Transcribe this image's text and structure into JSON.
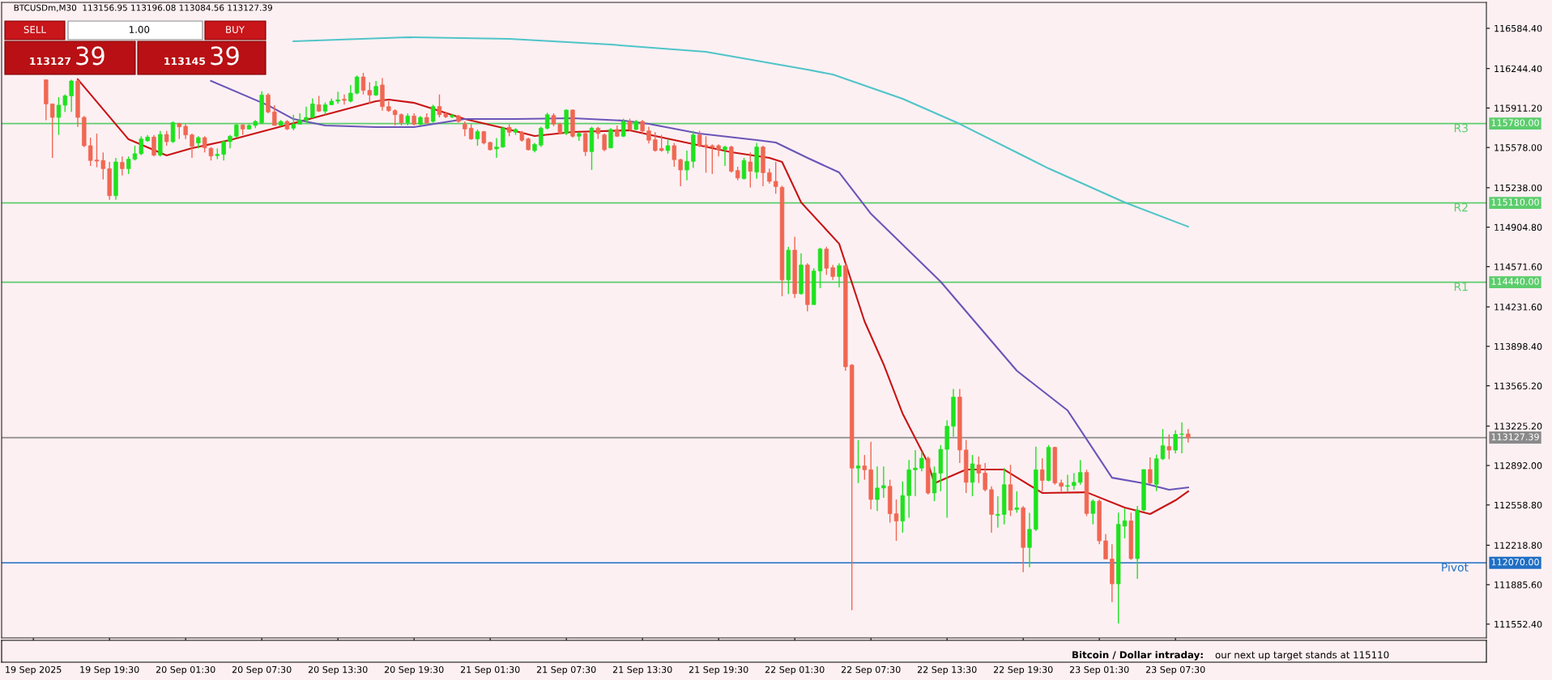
{
  "chart_data": {
    "type": "candlestick",
    "title": "BTCUSDm,M30  113156.95 113196.08 113084.56 113127.39",
    "x": [
      "2025-09-19T14:30",
      "2025-09-19T15:00",
      "2025-09-19T15:30",
      "2025-09-19T16:00",
      "2025-09-19T16:30",
      "2025-09-19T17:00",
      "2025-09-19T17:30",
      "2025-09-19T18:00",
      "2025-09-19T18:30",
      "2025-09-19T19:00",
      "2025-09-19T19:30",
      "2025-09-19T20:00",
      "2025-09-19T20:30",
      "2025-09-19T21:00",
      "2025-09-19T21:30",
      "2025-09-19T22:00",
      "2025-09-19T22:30",
      "2025-09-19T23:00",
      "2025-09-19T23:30",
      "2025-09-20T00:00",
      "2025-09-20T00:30",
      "2025-09-20T01:00",
      "2025-09-20T01:30",
      "2025-09-20T02:00",
      "2025-09-20T02:30",
      "2025-09-20T03:00",
      "2025-09-20T03:30",
      "2025-09-20T04:00",
      "2025-09-20T04:30",
      "2025-09-20T05:00",
      "2025-09-20T05:30",
      "2025-09-20T06:00",
      "2025-09-20T06:30",
      "2025-09-20T07:00",
      "2025-09-20T07:30",
      "2025-09-20T08:00",
      "2025-09-20T08:30",
      "2025-09-20T09:00",
      "2025-09-20T09:30",
      "2025-09-20T10:00",
      "2025-09-20T10:30",
      "2025-09-20T11:00",
      "2025-09-20T11:30",
      "2025-09-20T12:00",
      "2025-09-20T12:30",
      "2025-09-20T13:00",
      "2025-09-20T13:30",
      "2025-09-20T14:00",
      "2025-09-20T14:30",
      "2025-09-20T15:00",
      "2025-09-20T15:30",
      "2025-09-20T16:00",
      "2025-09-20T16:30",
      "2025-09-20T17:00",
      "2025-09-20T17:30",
      "2025-09-20T18:00",
      "2025-09-20T18:30",
      "2025-09-20T19:00",
      "2025-09-20T19:30",
      "2025-09-20T20:00",
      "2025-09-20T20:30",
      "2025-09-20T21:00",
      "2025-09-20T21:30",
      "2025-09-20T22:00",
      "2025-09-20T22:30",
      "2025-09-20T23:00",
      "2025-09-20T23:30",
      "2025-09-21T00:00",
      "2025-09-21T00:30",
      "2025-09-21T01:00",
      "2025-09-21T01:30",
      "2025-09-21T02:00",
      "2025-09-21T02:30",
      "2025-09-21T03:00",
      "2025-09-21T03:30",
      "2025-09-21T04:00",
      "2025-09-21T04:30",
      "2025-09-21T05:00",
      "2025-09-21T05:30",
      "2025-09-21T06:00",
      "2025-09-21T06:30",
      "2025-09-21T07:00",
      "2025-09-21T07:30",
      "2025-09-21T08:00",
      "2025-09-21T08:30",
      "2025-09-21T09:00",
      "2025-09-21T09:30",
      "2025-09-21T10:00",
      "2025-09-21T10:30",
      "2025-09-21T11:00",
      "2025-09-21T11:30",
      "2025-09-21T12:00",
      "2025-09-21T12:30",
      "2025-09-21T13:00",
      "2025-09-21T13:30",
      "2025-09-21T14:00",
      "2025-09-21T14:30",
      "2025-09-21T15:00",
      "2025-09-21T15:30",
      "2025-09-21T16:00",
      "2025-09-21T16:30",
      "2025-09-21T17:00",
      "2025-09-21T17:30",
      "2025-09-21T18:00",
      "2025-09-21T18:30",
      "2025-09-21T19:00",
      "2025-09-21T19:30",
      "2025-09-21T20:00",
      "2025-09-21T20:30",
      "2025-09-21T21:00",
      "2025-09-21T21:30",
      "2025-09-21T22:00",
      "2025-09-21T22:30",
      "2025-09-21T23:00",
      "2025-09-21T23:30",
      "2025-09-22T00:00",
      "2025-09-22T00:30",
      "2025-09-22T01:00",
      "2025-09-22T01:30",
      "2025-09-22T02:00",
      "2025-09-22T02:30",
      "2025-09-22T03:00",
      "2025-09-22T03:30",
      "2025-09-22T04:00",
      "2025-09-22T04:30",
      "2025-09-22T05:00",
      "2025-09-22T05:30",
      "2025-09-22T06:00",
      "2025-09-22T06:30",
      "2025-09-22T07:00",
      "2025-09-22T07:30",
      "2025-09-22T08:00",
      "2025-09-22T08:30",
      "2025-09-22T09:00",
      "2025-09-22T09:30",
      "2025-09-22T10:00",
      "2025-09-22T10:30",
      "2025-09-22T11:00",
      "2025-09-22T11:30",
      "2025-09-22T12:00",
      "2025-09-22T12:30",
      "2025-09-22T13:00",
      "2025-09-22T13:30",
      "2025-09-22T14:00",
      "2025-09-22T14:30",
      "2025-09-22T15:00",
      "2025-09-22T15:30",
      "2025-09-22T16:00",
      "2025-09-22T16:30",
      "2025-09-22T17:00",
      "2025-09-22T17:30",
      "2025-09-22T18:00",
      "2025-09-22T18:30",
      "2025-09-22T19:00",
      "2025-09-22T19:30",
      "2025-09-22T20:00",
      "2025-09-22T20:30",
      "2025-09-22T21:00",
      "2025-09-22T21:30",
      "2025-09-22T22:00",
      "2025-09-22T22:30",
      "2025-09-22T23:00",
      "2025-09-22T23:30",
      "2025-09-23T00:00",
      "2025-09-23T00:30",
      "2025-09-23T01:00",
      "2025-09-23T01:30",
      "2025-09-23T02:00",
      "2025-09-23T02:30",
      "2025-09-23T03:00",
      "2025-09-23T03:30",
      "2025-09-23T04:00",
      "2025-09-23T04:30",
      "2025-09-23T05:00",
      "2025-09-23T05:30",
      "2025-09-23T06:00",
      "2025-09-23T06:30",
      "2025-09-23T07:00",
      "2025-09-23T07:30",
      "2025-09-23T08:00",
      "2025-09-23T08:30"
    ],
    "ohlc": [
      [
        116150,
        116150,
        115809,
        115946
      ],
      [
        115946,
        115946,
        115490,
        115832
      ],
      [
        115832,
        116003,
        115684,
        115935
      ],
      [
        115935,
        116026,
        115878,
        116014
      ],
      [
        116014,
        116150,
        115878,
        116140
      ],
      [
        116140,
        116150,
        115752,
        115832
      ],
      [
        115832,
        115844,
        115581,
        115593
      ],
      [
        115593,
        115661,
        115422,
        115468
      ],
      [
        115472,
        115695,
        115411,
        115463
      ],
      [
        115468,
        115536,
        115308,
        115399
      ],
      [
        115399,
        115456,
        115137,
        115171
      ],
      [
        115171,
        115490,
        115137,
        115456
      ],
      [
        115452,
        115502,
        115342,
        115399
      ],
      [
        115399,
        115502,
        115354,
        115479
      ],
      [
        115479,
        115593,
        115468,
        115525
      ],
      [
        115525,
        115673,
        115513,
        115650
      ],
      [
        115634,
        115684,
        115627,
        115666
      ],
      [
        115666,
        115684,
        115502,
        115513
      ],
      [
        115513,
        115718,
        115502,
        115688
      ],
      [
        115688,
        115718,
        115593,
        115627
      ],
      [
        115627,
        115798,
        115616,
        115787
      ],
      [
        115780,
        115787,
        115650,
        115752
      ],
      [
        115757,
        115775,
        115650,
        115684
      ],
      [
        115684,
        115695,
        115490,
        115588
      ],
      [
        115616,
        115673,
        115570,
        115661
      ],
      [
        115661,
        115673,
        115536,
        115575
      ],
      [
        115570,
        115581,
        115468,
        115506
      ],
      [
        115509,
        115570,
        115479,
        115520
      ],
      [
        115520,
        115638,
        115468,
        115627
      ],
      [
        115627,
        115684,
        115570,
        115673
      ],
      [
        115673,
        115775,
        115661,
        115768
      ],
      [
        115768,
        115775,
        115684,
        115734
      ],
      [
        115734,
        115775,
        115729,
        115764
      ],
      [
        115764,
        115809,
        115741,
        115798
      ],
      [
        115787,
        116053,
        115775,
        116021
      ],
      [
        116021,
        116037,
        115866,
        115878
      ],
      [
        115878,
        115935,
        115764,
        115764
      ],
      [
        115764,
        115809,
        115764,
        115798
      ],
      [
        115798,
        115809,
        115725,
        115734
      ],
      [
        115741,
        115855,
        115723,
        115775
      ],
      [
        115775,
        115866,
        115775,
        115809
      ],
      [
        115809,
        115923,
        115787,
        115832
      ],
      [
        115832,
        115992,
        115825,
        115946
      ],
      [
        115939,
        116014,
        115878,
        115885
      ],
      [
        115885,
        115958,
        115855,
        115939
      ],
      [
        115939,
        115992,
        115935,
        115969
      ],
      [
        115969,
        116049,
        115946,
        115980
      ],
      [
        115985,
        116026,
        115939,
        115976
      ],
      [
        115969,
        116106,
        115958,
        116037
      ],
      [
        116037,
        116185,
        116026,
        116174
      ],
      [
        116174,
        116208,
        116026,
        116060
      ],
      [
        116060,
        116129,
        115946,
        116021
      ],
      [
        116021,
        116140,
        116014,
        116094
      ],
      [
        116106,
        116163,
        115889,
        115923
      ],
      [
        115923,
        115969,
        115878,
        115889
      ],
      [
        115889,
        115901,
        115764,
        115855
      ],
      [
        115855,
        115866,
        115764,
        115787
      ],
      [
        115787,
        115866,
        115764,
        115844
      ],
      [
        115844,
        115867,
        115764,
        115775
      ],
      [
        115775,
        115844,
        115764,
        115832
      ],
      [
        115832,
        115867,
        115775,
        115787
      ],
      [
        115798,
        115939,
        115787,
        115924
      ],
      [
        115924,
        116026,
        115832,
        115855
      ],
      [
        115862,
        115878,
        115826,
        115837
      ],
      [
        115837,
        115862,
        115826,
        115848
      ],
      [
        115844,
        115855,
        115787,
        115798
      ],
      [
        115775,
        115798,
        115673,
        115734
      ],
      [
        115741,
        115775,
        115643,
        115650
      ],
      [
        115650,
        115730,
        115593,
        115712
      ],
      [
        115712,
        115718,
        115604,
        115616
      ],
      [
        115620,
        115627,
        115552,
        115559
      ],
      [
        115566,
        115657,
        115490,
        115582
      ],
      [
        115582,
        115753,
        115575,
        115741
      ],
      [
        115748,
        115775,
        115673,
        115707
      ],
      [
        115707,
        115741,
        115684,
        115730
      ],
      [
        115707,
        115718,
        115627,
        115639
      ],
      [
        115650,
        115661,
        115552,
        115559
      ],
      [
        115552,
        115616,
        115536,
        115604
      ],
      [
        115598,
        115753,
        115582,
        115741
      ],
      [
        115741,
        115871,
        115730,
        115855
      ],
      [
        115848,
        115867,
        115757,
        115775
      ],
      [
        115775,
        115787,
        115696,
        115696
      ],
      [
        115696,
        115901,
        115684,
        115894
      ],
      [
        115894,
        115901,
        115661,
        115673
      ],
      [
        115673,
        115707,
        115634,
        115696
      ],
      [
        115696,
        115707,
        115506,
        115543
      ],
      [
        115543,
        115753,
        115388,
        115741
      ],
      [
        115741,
        115753,
        115650,
        115696
      ],
      [
        115684,
        115696,
        115547,
        115559
      ],
      [
        115575,
        115741,
        115570,
        115730
      ],
      [
        115730,
        115764,
        115666,
        115673
      ],
      [
        115673,
        115821,
        115666,
        115798
      ],
      [
        115798,
        115821,
        115718,
        115730
      ],
      [
        115730,
        115810,
        115725,
        115798
      ],
      [
        115798,
        115810,
        115696,
        115718
      ],
      [
        115718,
        115753,
        115611,
        115639
      ],
      [
        115643,
        115707,
        115543,
        115552
      ],
      [
        115570,
        115684,
        115543,
        115552
      ],
      [
        115552,
        115650,
        115525,
        115593
      ],
      [
        115593,
        115616,
        115415,
        115475
      ],
      [
        115475,
        115484,
        115251,
        115388
      ],
      [
        115388,
        115552,
        115301,
        115461
      ],
      [
        115461,
        115718,
        115406,
        115684
      ],
      [
        115684,
        115718,
        115582,
        115593
      ],
      [
        115598,
        115673,
        115365,
        115582
      ],
      [
        115593,
        115604,
        115354,
        115582
      ],
      [
        115593,
        115604,
        115502,
        115559
      ],
      [
        115559,
        115593,
        115422,
        115582
      ],
      [
        115582,
        115593,
        115365,
        115377
      ],
      [
        115383,
        115415,
        115301,
        115320
      ],
      [
        115315,
        115490,
        115308,
        115468
      ],
      [
        115456,
        115536,
        115240,
        115377
      ],
      [
        115370,
        115616,
        115315,
        115582
      ],
      [
        115582,
        115593,
        115251,
        115365
      ],
      [
        115365,
        115399,
        115274,
        115292
      ],
      [
        115292,
        115456,
        115187,
        115247
      ],
      [
        115241,
        115255,
        114321,
        114460
      ],
      [
        114460,
        114739,
        114340,
        114711
      ],
      [
        114711,
        114823,
        114307,
        114343
      ],
      [
        114343,
        114683,
        114335,
        114586
      ],
      [
        114586,
        114600,
        114195,
        114251
      ],
      [
        114251,
        114558,
        114251,
        114535
      ],
      [
        114535,
        114731,
        114390,
        114720
      ],
      [
        114720,
        114739,
        114502,
        114558
      ],
      [
        114563,
        114586,
        114460,
        114488
      ],
      [
        114488,
        114600,
        114396,
        114580
      ],
      [
        114580,
        114600,
        113693,
        113726
      ],
      [
        113740,
        113748,
        111670,
        112870
      ],
      [
        112870,
        113107,
        112744,
        112889
      ],
      [
        112889,
        112981,
        112772,
        112856
      ],
      [
        112856,
        113093,
        112521,
        112605
      ],
      [
        112605,
        112884,
        112507,
        112702
      ],
      [
        112702,
        112884,
        112618,
        112722
      ],
      [
        112716,
        112772,
        112409,
        112485
      ],
      [
        112485,
        112605,
        112256,
        112423
      ],
      [
        112423,
        112758,
        112325,
        112638
      ],
      [
        112638,
        112939,
        112451,
        112856
      ],
      [
        112856,
        113023,
        112632,
        112870
      ],
      [
        112870,
        113009,
        112842,
        112953
      ],
      [
        112953,
        112967,
        112646,
        112660
      ],
      [
        112660,
        112884,
        112591,
        112828
      ],
      [
        112828,
        113065,
        112674,
        113029
      ],
      [
        113029,
        113274,
        112451,
        113224
      ],
      [
        113224,
        113539,
        113135,
        113470
      ],
      [
        113470,
        113539,
        112912,
        113023
      ],
      [
        113023,
        113107,
        112660,
        112750
      ],
      [
        112750,
        112981,
        112632,
        112906
      ],
      [
        112898,
        112967,
        112744,
        112828
      ],
      [
        112828,
        112912,
        112674,
        112688
      ],
      [
        112688,
        112716,
        112325,
        112479
      ],
      [
        112471,
        112632,
        112367,
        112479
      ],
      [
        112479,
        112870,
        112395,
        112730
      ],
      [
        112730,
        112898,
        112465,
        112515
      ],
      [
        112521,
        112674,
        112493,
        112535
      ],
      [
        112535,
        112549,
        111991,
        112200
      ],
      [
        112200,
        112493,
        112032,
        112353
      ],
      [
        112353,
        113051,
        112339,
        112856
      ],
      [
        112856,
        112953,
        112674,
        112766
      ],
      [
        112766,
        113065,
        112758,
        113045
      ],
      [
        113045,
        113051,
        112730,
        112744
      ],
      [
        112744,
        112772,
        112674,
        112716
      ],
      [
        112716,
        112814,
        112674,
        112722
      ],
      [
        112722,
        112828,
        112688,
        112750
      ],
      [
        112750,
        112939,
        112730,
        112833
      ],
      [
        112833,
        112856,
        112465,
        112487
      ],
      [
        112487,
        112605,
        112395,
        112591
      ],
      [
        112591,
        112605,
        112228,
        112256
      ],
      [
        112256,
        112312,
        112102,
        112102
      ],
      [
        112102,
        112228,
        111739,
        111893
      ],
      [
        111893,
        112494,
        111558,
        112395
      ],
      [
        112380,
        112528,
        112277,
        112425
      ],
      [
        112425,
        112494,
        112095,
        112106
      ],
      [
        112106,
        112551,
        111935,
        112516
      ],
      [
        112516,
        112858,
        112505,
        112858
      ],
      [
        112858,
        112961,
        112733,
        112744
      ],
      [
        112733,
        112984,
        112676,
        112949
      ],
      [
        112949,
        113200,
        112938,
        113059
      ],
      [
        113052,
        113155,
        112945,
        113022
      ],
      [
        113022,
        113189,
        112995,
        113155
      ],
      [
        113155,
        113257,
        112995,
        113159
      ],
      [
        113159,
        113200,
        113086,
        113127.39
      ]
    ],
    "colors": [
      "#f06752",
      "#f06752",
      "#1ee21e",
      "#1ee21e",
      "#1ee21e",
      "#f06752",
      "#f06752",
      "#f06752",
      "#f06752",
      "#f06752",
      "#f06752",
      "#1ee21e",
      "#f06752",
      "#1ee21e",
      "#1ee21e",
      "#1ee21e",
      "#1ee21e",
      "#f06752",
      "#1ee21e",
      "#f06752",
      "#1ee21e",
      "#f06752",
      "#f06752",
      "#f06752",
      "#1ee21e",
      "#f06752",
      "#f06752",
      "#1ee21e",
      "#1ee21e",
      "#1ee21e",
      "#1ee21e",
      "#f06752",
      "#1ee21e",
      "#1ee21e",
      "#1ee21e",
      "#f06752",
      "#f06752",
      "#1ee21e",
      "#f06752",
      "#1ee21e",
      "#1ee21e",
      "#1ee21e",
      "#1ee21e",
      "#f06752",
      "#1ee21e",
      "#1ee21e",
      "#1ee21e",
      "#f06752",
      "#1ee21e",
      "#1ee21e",
      "#f06752",
      "#f06752",
      "#1ee21e",
      "#f06752",
      "#f06752",
      "#f06752",
      "#f06752",
      "#1ee21e",
      "#f06752",
      "#1ee21e",
      "#f06752",
      "#1ee21e",
      "#f06752",
      "#f06752",
      "#1ee21e",
      "#f06752",
      "#f06752",
      "#f06752",
      "#1ee21e",
      "#f06752",
      "#f06752",
      "#1ee21e",
      "#1ee21e",
      "#f06752",
      "#1ee21e",
      "#f06752",
      "#f06752",
      "#1ee21e",
      "#1ee21e",
      "#1ee21e",
      "#f06752",
      "#f06752",
      "#1ee21e",
      "#f06752",
      "#1ee21e",
      "#f06752",
      "#1ee21e",
      "#f06752",
      "#f06752",
      "#1ee21e",
      "#f06752",
      "#1ee21e",
      "#f06752",
      "#1ee21e",
      "#f06752",
      "#f06752",
      "#f06752",
      "#f06752",
      "#1ee21e",
      "#f06752",
      "#f06752",
      "#1ee21e",
      "#1ee21e",
      "#f06752",
      "#f06752",
      "#f06752",
      "#f06752",
      "#1ee21e",
      "#f06752",
      "#f06752",
      "#1ee21e",
      "#f06752",
      "#1ee21e",
      "#f06752",
      "#f06752",
      "#f06752",
      "#f06752",
      "#1ee21e",
      "#f06752",
      "#1ee21e",
      "#f06752",
      "#1ee21e",
      "#1ee21e",
      "#f06752",
      "#f06752",
      "#1ee21e",
      "#f06752",
      "#f06752",
      "#1ee21e",
      "#f06752",
      "#f06752",
      "#1ee21e",
      "#1ee21e",
      "#f06752",
      "#f06752",
      "#1ee21e",
      "#1ee21e",
      "#1ee21e",
      "#1ee21e",
      "#f06752",
      "#1ee21e",
      "#1ee21e",
      "#1ee21e",
      "#1ee21e",
      "#f06752",
      "#f06752",
      "#1ee21e",
      "#f06752",
      "#f06752",
      "#f06752",
      "#1ee21e",
      "#1ee21e",
      "#f06752",
      "#1ee21e",
      "#f06752",
      "#1ee21e",
      "#1ee21e",
      "#f06752",
      "#1ee21e",
      "#f06752",
      "#f06752",
      "#1ee21e",
      "#1ee21e",
      "#1ee21e",
      "#f06752",
      "#1ee21e",
      "#f06752",
      "#f06752",
      "#f06752",
      "#1ee21e",
      "#1ee21e",
      "#f06752",
      "#1ee21e",
      "#1ee21e",
      "#f06752",
      "#1ee21e",
      "#1ee21e",
      "#f06752",
      "#1ee21e",
      "#1ee21e",
      "#f06752"
    ],
    "series": [
      {
        "type": "line",
        "color": "#c81414",
        "x": [
          "2025-09-19T17:00",
          "2025-09-19T21:00",
          "2025-09-20T00:00",
          "2025-09-20T02:00",
          "2025-09-20T05:00",
          "2025-09-20T11:00",
          "2025-09-20T16:30",
          "2025-09-20T17:30",
          "2025-09-20T19:30",
          "2025-09-20T23:30",
          "2025-09-21T02:30",
          "2025-09-21T05:00",
          "2025-09-21T08:00",
          "2025-09-21T12:30",
          "2025-09-21T14:30",
          "2025-09-21T20:30",
          "2025-09-21T23:30",
          "2025-09-22T00:30",
          "2025-09-22T02:00",
          "2025-09-22T05:00",
          "2025-09-22T07:00",
          "2025-09-22T08:30",
          "2025-09-22T10:00",
          "2025-09-22T12:00",
          "2025-09-22T12:30",
          "2025-09-22T15:00",
          "2025-09-22T18:00",
          "2025-09-22T21:00",
          "2025-09-23T00:30",
          "2025-09-23T03:30",
          "2025-09-23T05:30",
          "2025-09-23T07:30",
          "2025-09-23T08:30"
        ],
        "values": [
          116154,
          115647,
          115511,
          115572,
          115641,
          115811,
          115969,
          115982,
          115955,
          115818,
          115743,
          115675,
          115709,
          115723,
          115675,
          115538,
          115490,
          115456,
          115114,
          114765,
          114109,
          113747,
          113330,
          112913,
          112742,
          112858,
          112858,
          112660,
          112666,
          112537,
          112482,
          112598,
          112673
        ]
      },
      {
        "type": "line",
        "color": "#6a55b8",
        "x": [
          "2025-09-20T03:30",
          "2025-09-20T08:00",
          "2025-09-20T10:00",
          "2025-09-20T12:30",
          "2025-09-20T16:30",
          "2025-09-20T19:30",
          "2025-09-20T23:30",
          "2025-09-21T03:30",
          "2025-09-21T08:00",
          "2025-09-21T12:00",
          "2025-09-21T14:00",
          "2025-09-21T18:00",
          "2025-09-21T22:30",
          "2025-09-22T00:00",
          "2025-09-22T02:30",
          "2025-09-22T05:00",
          "2025-09-22T07:30",
          "2025-09-22T13:00",
          "2025-09-22T19:00",
          "2025-09-22T23:00",
          "2025-09-23T02:30",
          "2025-09-23T05:00",
          "2025-09-23T07:00",
          "2025-09-23T08:30"
        ],
        "values": [
          116140,
          115934,
          115818,
          115764,
          115750,
          115750,
          115818,
          115818,
          115825,
          115805,
          115777,
          115695,
          115641,
          115620,
          115490,
          115367,
          115018,
          114444,
          113692,
          113357,
          112789,
          112742,
          112687,
          112707
        ]
      },
      {
        "type": "line",
        "color": "#4fc4c8",
        "x": [
          "2025-09-20T10:00",
          "2025-09-20T19:00",
          "2025-09-21T03:00",
          "2025-09-21T11:00",
          "2025-09-21T18:30",
          "2025-09-22T02:30",
          "2025-09-22T04:30",
          "2025-09-22T10:00",
          "2025-09-22T14:30",
          "2025-09-22T21:30",
          "2025-09-23T03:30",
          "2025-09-23T08:30"
        ],
        "values": [
          116475,
          116509,
          116495,
          116447,
          116386,
          116235,
          116194,
          115989,
          115777,
          115401,
          115114,
          114909
        ]
      }
    ],
    "xlim": [
      "2025-09-19T11:00",
      "2025-09-24T08:00"
    ],
    "xticks": [
      {
        "value": "2025-09-19T13:30",
        "label": "19 Sep 2025"
      },
      {
        "value": "2025-09-19T19:30",
        "label": "19 Sep 19:30"
      },
      {
        "value": "2025-09-20T01:30",
        "label": "20 Sep 01:30"
      },
      {
        "value": "2025-09-20T07:30",
        "label": "20 Sep 07:30"
      },
      {
        "value": "2025-09-20T13:30",
        "label": "20 Sep 13:30"
      },
      {
        "value": "2025-09-20T19:30",
        "label": "20 Sep 19:30"
      },
      {
        "value": "2025-09-21T01:30",
        "label": "21 Sep 01:30"
      },
      {
        "value": "2025-09-21T07:30",
        "label": "21 Sep 07:30"
      },
      {
        "value": "2025-09-21T13:30",
        "label": "21 Sep 13:30"
      },
      {
        "value": "2025-09-21T19:30",
        "label": "21 Sep 19:30"
      },
      {
        "value": "2025-09-22T01:30",
        "label": "22 Sep 01:30"
      },
      {
        "value": "2025-09-22T07:30",
        "label": "22 Sep 07:30"
      },
      {
        "value": "2025-09-22T13:30",
        "label": "22 Sep 13:30"
      },
      {
        "value": "2025-09-22T19:30",
        "label": "22 Sep 19:30"
      },
      {
        "value": "2025-09-23T01:30",
        "label": "23 Sep 01:30"
      },
      {
        "value": "2025-09-23T07:30",
        "label": "23 Sep 07:30"
      }
    ],
    "ylim": [
      111436,
      116803
    ],
    "yticks": [
      {
        "value": 116584.4,
        "label": "116584.40"
      },
      {
        "value": 116244.4,
        "label": "116244.40"
      },
      {
        "value": 115911.2,
        "label": "115911.20"
      },
      {
        "value": 115578,
        "label": "115578.00"
      },
      {
        "value": 115238,
        "label": "115238.00"
      },
      {
        "value": 114904.8,
        "label": "114904.80"
      },
      {
        "value": 114571.6,
        "label": "114571.60"
      },
      {
        "value": 114231.6,
        "label": "114231.60"
      },
      {
        "value": 113898.4,
        "label": "113898.40"
      },
      {
        "value": 113565.2,
        "label": "113565.20"
      },
      {
        "value": 113225.2,
        "label": "113225.20"
      },
      {
        "value": 112892,
        "label": "112892.00"
      },
      {
        "value": 112558.8,
        "label": "112558.80"
      },
      {
        "value": 112218.8,
        "label": "112218.80"
      },
      {
        "value": 111885.6,
        "label": "111885.60"
      },
      {
        "value": 111552.4,
        "label": "111552.40"
      }
    ],
    "ref_lines": [
      {
        "axis": "y",
        "value": 115780,
        "label": "R3",
        "color": "#5ccd6c"
      },
      {
        "axis": "y",
        "value": 115110,
        "label": "R2",
        "color": "#5ccd6c"
      },
      {
        "axis": "y",
        "value": 114440,
        "label": "R1",
        "color": "#5ccd6c"
      },
      {
        "axis": "y",
        "value": 112070,
        "label": "Pivot",
        "color": "#1f6fc4"
      },
      {
        "axis": "y",
        "value": 113127.39,
        "color": "#8a8a8a"
      }
    ],
    "annotations": [
      "SELL",
      "1.00",
      "BUY",
      "113127",
      "39",
      "113145",
      "39",
      "Bitcoin / Dollar intraday:",
      "our next up target stands at 115110",
      "115780.00",
      "115110.00",
      "114440.00",
      "112070.00",
      "113127.39"
    ]
  }
}
